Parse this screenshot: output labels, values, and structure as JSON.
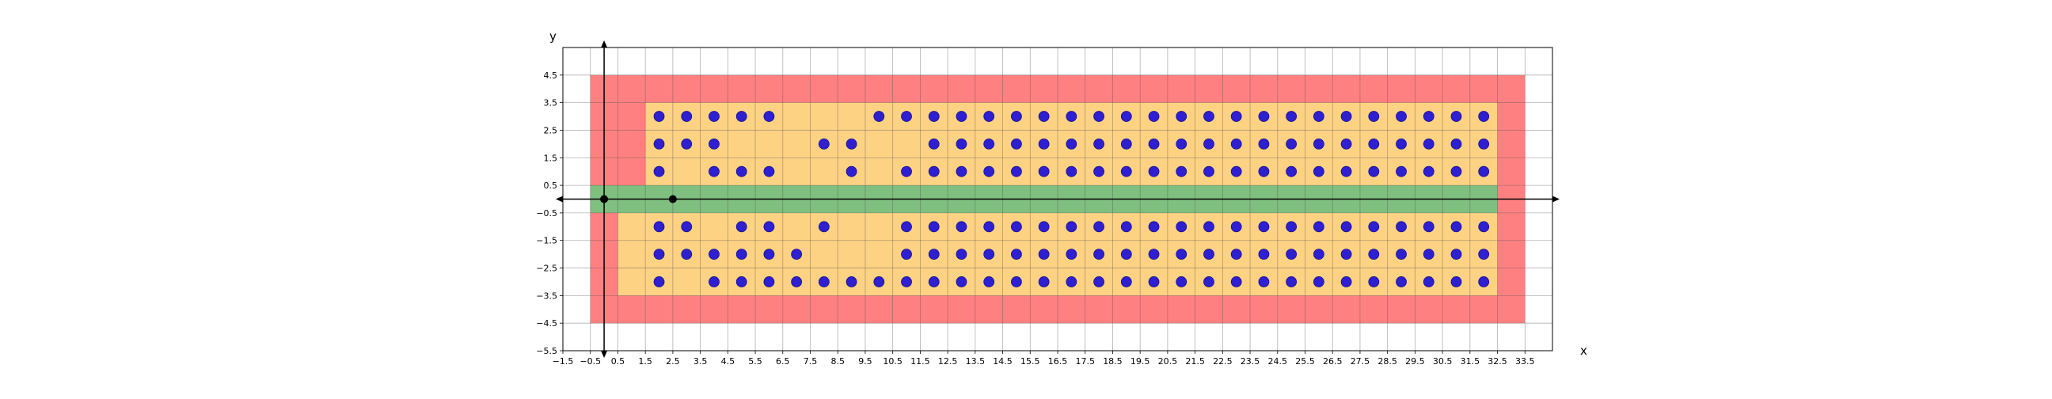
{
  "chart_data": {
    "type": "scatter",
    "title": "",
    "xlabel": "x",
    "ylabel": "y",
    "xlim": [
      -1.5,
      34.5
    ],
    "ylim": [
      -5.5,
      5.5
    ],
    "grid": true,
    "x_ticks": [
      -1.5,
      -0.5,
      0.5,
      1.5,
      2.5,
      3.5,
      4.5,
      5.5,
      6.5,
      7.5,
      8.5,
      9.5,
      10.5,
      11.5,
      12.5,
      13.5,
      14.5,
      15.5,
      16.5,
      17.5,
      18.5,
      19.5,
      20.5,
      21.5,
      22.5,
      23.5,
      24.5,
      25.5,
      26.5,
      27.5,
      28.5,
      29.5,
      30.5,
      31.5,
      32.5,
      33.5
    ],
    "x_tick_labels": [
      "-1.5",
      "-0.5",
      "0.5",
      "1.5",
      "2.5",
      "3.5",
      "4.5",
      "5.5",
      "6.5",
      "7.5",
      "8.5",
      "9.5",
      "10.5",
      "11.5",
      "12.5",
      "13.5",
      "14.5",
      "15.5",
      "16.5",
      "17.5",
      "18.5",
      "19.5",
      "20.5",
      "21.5",
      "22.5",
      "23.5",
      "24.5",
      "25.5",
      "26.5",
      "27.5",
      "28.5",
      "29.5",
      "30.5",
      "31.5",
      "32.5",
      "33.5"
    ],
    "y_ticks": [
      4.5,
      3.5,
      2.5,
      1.5,
      0.5,
      -0.5,
      -1.5,
      -2.5,
      -3.5,
      -4.5,
      -5.5
    ],
    "y_tick_labels": [
      "4.5",
      "3.5",
      "2.5",
      "1.5",
      "0.5",
      "-0.5",
      "-1.5",
      "-2.5",
      "-3.5",
      "-4.5",
      "-5.5"
    ],
    "regions": [
      {
        "name": "outer",
        "color": "#ff8080",
        "x": [
          -0.5,
          33.5
        ],
        "y": [
          -4.5,
          4.5
        ]
      },
      {
        "name": "inner",
        "color": "#fdd283",
        "x": [
          0.5,
          32.5
        ],
        "y": [
          -3.5,
          3.5
        ],
        "upper_x_start": 1.5
      },
      {
        "name": "corridor",
        "color": "#7fbf7f",
        "x": [
          -0.5,
          32.5
        ],
        "y": [
          -0.5,
          0.5
        ]
      }
    ],
    "colors": {
      "points": "#2e1fd1",
      "points_edge": "#1a1090",
      "black_points": "#000000"
    },
    "black_points": [
      {
        "x": 0,
        "y": 0
      },
      {
        "x": 2.5,
        "y": 0
      }
    ],
    "point_rows": [
      {
        "y": 3,
        "x": [
          2,
          3,
          4,
          5,
          6,
          10,
          11,
          12,
          13,
          14,
          15,
          16,
          17,
          18,
          19,
          20,
          21,
          22,
          23,
          24,
          25,
          26,
          27,
          28,
          29,
          30,
          31,
          32
        ]
      },
      {
        "y": 2,
        "x": [
          2,
          3,
          4,
          8,
          9,
          12,
          13,
          14,
          15,
          16,
          17,
          18,
          19,
          20,
          21,
          22,
          23,
          24,
          25,
          26,
          27,
          28,
          29,
          30,
          31,
          32
        ]
      },
      {
        "y": 1,
        "x": [
          2,
          4,
          5,
          6,
          9,
          11,
          12,
          13,
          14,
          15,
          16,
          17,
          18,
          19,
          20,
          21,
          22,
          23,
          24,
          25,
          26,
          27,
          28,
          29,
          30,
          31,
          32
        ]
      },
      {
        "y": -1,
        "x": [
          2,
          3,
          5,
          6,
          8,
          11,
          12,
          13,
          14,
          15,
          16,
          17,
          18,
          19,
          20,
          21,
          22,
          23,
          24,
          25,
          26,
          27,
          28,
          29,
          30,
          31,
          32
        ]
      },
      {
        "y": -2,
        "x": [
          2,
          3,
          4,
          5,
          6,
          7,
          11,
          12,
          13,
          14,
          15,
          16,
          17,
          18,
          19,
          20,
          21,
          22,
          23,
          24,
          25,
          26,
          27,
          28,
          29,
          30,
          31,
          32
        ]
      },
      {
        "y": -3,
        "x": [
          2,
          4,
          5,
          6,
          7,
          8,
          9,
          10,
          11,
          12,
          13,
          14,
          15,
          16,
          17,
          18,
          19,
          20,
          21,
          22,
          23,
          24,
          25,
          26,
          27,
          28,
          29,
          30,
          31,
          32
        ]
      }
    ]
  }
}
